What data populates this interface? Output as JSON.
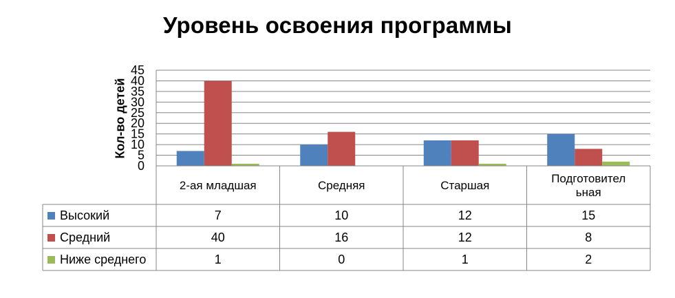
{
  "chart_data": {
    "type": "bar",
    "title": "Уровень освоения программы",
    "ylabel": "Кол-во детей",
    "xlabel": "",
    "ylim": [
      0,
      45
    ],
    "yticks": [
      0,
      5,
      10,
      15,
      20,
      25,
      30,
      35,
      40,
      45
    ],
    "grid": true,
    "legend": "data-table",
    "categories": [
      "2-ая младшая",
      "Средняя",
      "Старшая",
      "Подготовительная"
    ],
    "category_lines": [
      [
        "2-ая младшая"
      ],
      [
        "Средняя"
      ],
      [
        "Старшая"
      ],
      [
        "Подготовител",
        "ьная"
      ]
    ],
    "series": [
      {
        "name": "Высокий",
        "values": [
          7,
          10,
          12,
          15
        ],
        "color": "#4F81BD"
      },
      {
        "name": "Средний",
        "values": [
          40,
          16,
          12,
          8
        ],
        "color": "#C0504D"
      },
      {
        "name": "Ниже среднего",
        "values": [
          1,
          0,
          1,
          2
        ],
        "color": "#9BBB59"
      }
    ]
  }
}
